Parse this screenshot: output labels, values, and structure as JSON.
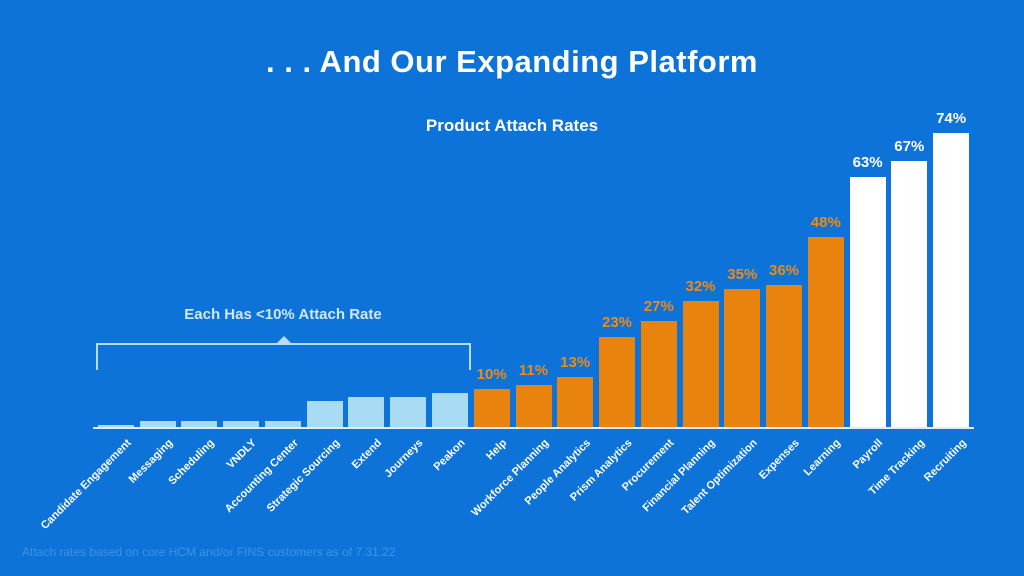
{
  "slide": {
    "title": ". . . And Our Expanding Platform",
    "subtitle": "Product Attach Rates",
    "annotation": "Each Has <10% Attach Rate",
    "footnote": "Attach rates based on core HCM and/or FINS customers as of 7.31.22"
  },
  "colors": {
    "background": "#0d73d9",
    "bar_light_blue": "#a8dcf5",
    "bar_orange": "#e8830d",
    "bar_white": "#ffffff",
    "value_label_orange": "#ef8a14",
    "value_label_white": "#ffffff",
    "category_text": "#ffffff",
    "axis": "#dcecf8",
    "bracket": "#b7dcf5",
    "annotation_text": "#cfe8fa",
    "footnote_text": "#3d94e2"
  },
  "chart_data": {
    "type": "bar",
    "title": "Product Attach Rates",
    "categories": [
      "Candidate Engagement",
      "Messaging",
      "Scheduling",
      "VNDLY",
      "Accounting Center",
      "Strategic Sourcing",
      "Extend",
      "Journeys",
      "Peakon",
      "Help",
      "Workforce Planning",
      "People Analytics",
      "Prism Analytics",
      "Procurement",
      "Financial Planning",
      "Talent Optimization",
      "Expenses",
      "Learning",
      "Payroll",
      "Time Tracking",
      "Recruiting"
    ],
    "values": [
      1,
      2,
      2,
      2,
      2,
      7,
      8,
      8,
      9,
      10,
      11,
      13,
      23,
      27,
      32,
      35,
      36,
      48,
      63,
      67,
      74
    ],
    "value_labels": [
      "",
      "",
      "",
      "",
      "",
      "",
      "",
      "",
      "",
      "10%",
      "11%",
      "13%",
      "23%",
      "27%",
      "32%",
      "35%",
      "36%",
      "48%",
      "63%",
      "67%",
      "74%"
    ],
    "bar_groups": [
      "light",
      "light",
      "light",
      "light",
      "light",
      "light",
      "light",
      "light",
      "light",
      "orange",
      "orange",
      "orange",
      "orange",
      "orange",
      "orange",
      "orange",
      "orange",
      "orange",
      "white",
      "white",
      "white"
    ],
    "unlabeled_values_estimated": true,
    "annotation": {
      "text": "Each Has <10% Attach Rate",
      "applies_to_bars": "first 9 (light blue)"
    },
    "ylim": [
      0,
      80
    ],
    "grid": false,
    "legend": "none",
    "xlabel": "",
    "ylabel": ""
  }
}
